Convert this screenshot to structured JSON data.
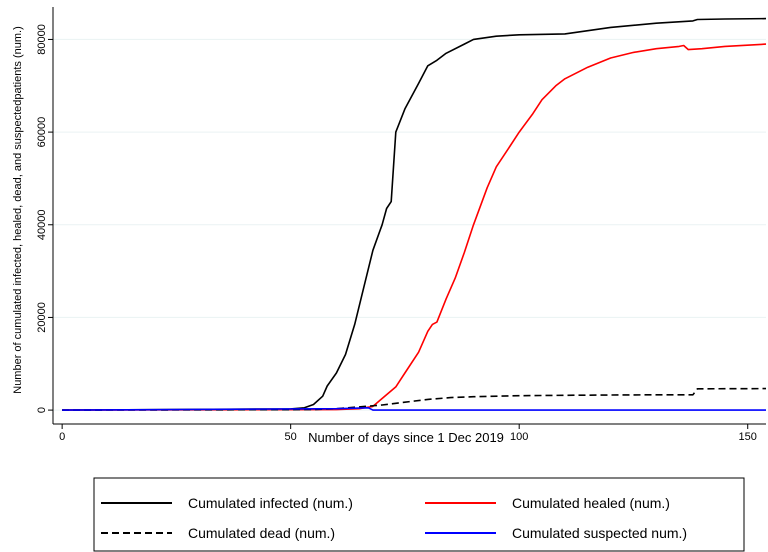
{
  "chart_data": {
    "type": "line",
    "xlabel": "Number of days since 1 Dec 2019",
    "ylabel": "Number of cumulated infected, healed, dead, and suspectedpatients (num.)",
    "xlim": [
      -2,
      154
    ],
    "ylim": [
      -3000,
      87000
    ],
    "xticks": [
      0,
      50,
      100,
      150
    ],
    "yticks": [
      0,
      20000,
      40000,
      60000,
      80000
    ],
    "grid": true,
    "legend_position": "bottom",
    "series": [
      {
        "name": "Cumulated infected (num.)",
        "color": "#000000",
        "dash": "solid",
        "points": [
          [
            0,
            0
          ],
          [
            50,
            250
          ],
          [
            53,
            500
          ],
          [
            55,
            1200
          ],
          [
            57,
            3000
          ],
          [
            58,
            5200
          ],
          [
            60,
            8000
          ],
          [
            62,
            12000
          ],
          [
            64,
            18500
          ],
          [
            66,
            26500
          ],
          [
            68,
            34500
          ],
          [
            70,
            40000
          ],
          [
            71,
            43500
          ],
          [
            72,
            45000
          ],
          [
            73,
            60000
          ],
          [
            75,
            65000
          ],
          [
            78,
            70500
          ],
          [
            80,
            74300
          ],
          [
            82,
            75500
          ],
          [
            84,
            77000
          ],
          [
            88,
            79000
          ],
          [
            90,
            80000
          ],
          [
            95,
            80700
          ],
          [
            100,
            81000
          ],
          [
            110,
            81200
          ],
          [
            120,
            82600
          ],
          [
            130,
            83500
          ],
          [
            138,
            84000
          ],
          [
            139,
            84300
          ],
          [
            145,
            84400
          ],
          [
            154,
            84500
          ]
        ]
      },
      {
        "name": "Cumulated healed (num.)",
        "color": "#ff0000",
        "dash": "solid",
        "points": [
          [
            0,
            0
          ],
          [
            60,
            100
          ],
          [
            65,
            300
          ],
          [
            68,
            800
          ],
          [
            70,
            2500
          ],
          [
            73,
            5000
          ],
          [
            75,
            8000
          ],
          [
            78,
            12500
          ],
          [
            80,
            17000
          ],
          [
            81,
            18500
          ],
          [
            82,
            19000
          ],
          [
            84,
            24000
          ],
          [
            86,
            28500
          ],
          [
            88,
            34000
          ],
          [
            90,
            40000
          ],
          [
            93,
            48000
          ],
          [
            95,
            52500
          ],
          [
            98,
            57000
          ],
          [
            100,
            60000
          ],
          [
            103,
            64000
          ],
          [
            105,
            67000
          ],
          [
            108,
            70000
          ],
          [
            110,
            71500
          ],
          [
            115,
            74000
          ],
          [
            120,
            76000
          ],
          [
            125,
            77200
          ],
          [
            130,
            78000
          ],
          [
            135,
            78500
          ],
          [
            136,
            78700
          ],
          [
            137,
            77800
          ],
          [
            140,
            78000
          ],
          [
            145,
            78500
          ],
          [
            154,
            79000
          ]
        ]
      },
      {
        "name": "Cumulated dead (num.)",
        "color": "#000000",
        "dash": "dashed",
        "points": [
          [
            0,
            0
          ],
          [
            55,
            100
          ],
          [
            60,
            300
          ],
          [
            65,
            700
          ],
          [
            70,
            1100
          ],
          [
            75,
            1700
          ],
          [
            80,
            2300
          ],
          [
            85,
            2700
          ],
          [
            90,
            2900
          ],
          [
            100,
            3100
          ],
          [
            110,
            3200
          ],
          [
            120,
            3250
          ],
          [
            130,
            3300
          ],
          [
            138,
            3300
          ],
          [
            139,
            4600
          ],
          [
            154,
            4650
          ]
        ]
      },
      {
        "name": "Cumulated suspected num.)",
        "color": "#0000ff",
        "dash": "solid",
        "points": [
          [
            0,
            0
          ],
          [
            60,
            300
          ],
          [
            67,
            500
          ],
          [
            68,
            0
          ],
          [
            154,
            0
          ]
        ]
      }
    ]
  }
}
